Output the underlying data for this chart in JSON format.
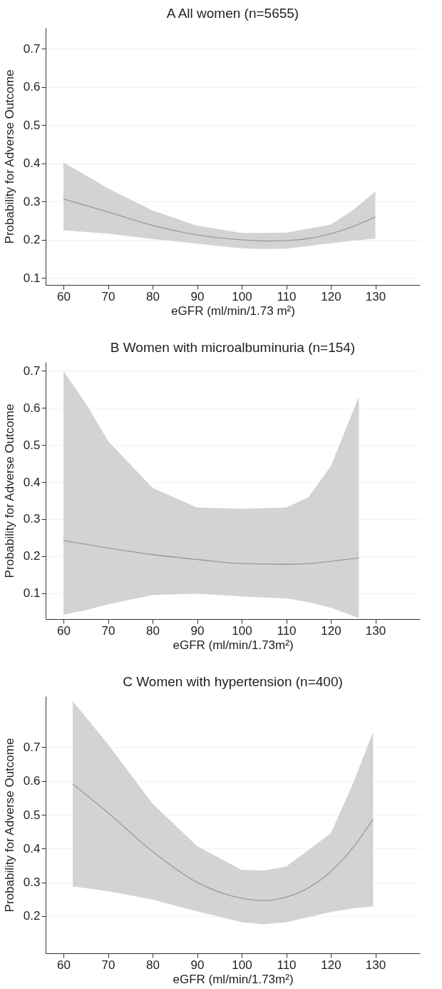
{
  "chart_data": [
    {
      "type": "line",
      "title": "A All women (n=5655)",
      "xlabel": "eGFR (ml/min/1.73 m²)",
      "ylabel": "Probability for Adverse Outcome",
      "x": [
        60,
        70,
        80,
        90,
        100,
        105,
        110,
        120,
        125,
        130
      ],
      "series": [
        {
          "color": "#9a9a9a",
          "values": [
            0.307,
            0.273,
            0.238,
            0.213,
            0.2,
            0.197,
            0.198,
            0.216,
            0.235,
            0.26
          ],
          "lower": [
            0.225,
            0.216,
            0.202,
            0.19,
            0.178,
            0.176,
            0.177,
            0.191,
            0.198,
            0.203
          ],
          "upper": [
            0.403,
            0.335,
            0.277,
            0.237,
            0.218,
            0.218,
            0.219,
            0.24,
            0.278,
            0.327
          ]
        }
      ],
      "xlim": [
        56,
        140
      ],
      "xticks": [
        60,
        70,
        80,
        90,
        100,
        110,
        120,
        130
      ],
      "ylim": [
        0.082,
        0.755
      ],
      "yticks": [
        0.1,
        0.2,
        0.3,
        0.4,
        0.5,
        0.6,
        0.7
      ],
      "grid": "y"
    },
    {
      "type": "line",
      "title": "B Women with microalbuminuria (n=154)",
      "xlabel": "eGFR (ml/min/1.73m²)",
      "ylabel": "Probability for Adverse Outcome",
      "x": [
        60,
        65,
        70,
        80,
        90,
        100,
        110,
        115,
        120,
        126.3
      ],
      "series": [
        {
          "color": "#9a9a9a",
          "values": [
            0.242,
            0.232,
            0.222,
            0.204,
            0.191,
            0.18,
            0.178,
            0.18,
            0.186,
            0.195
          ],
          "lower": [
            0.042,
            0.054,
            0.07,
            0.095,
            0.099,
            0.091,
            0.086,
            0.076,
            0.061,
            0.033
          ],
          "upper": [
            0.7,
            0.612,
            0.511,
            0.384,
            0.331,
            0.328,
            0.331,
            0.359,
            0.443,
            0.63
          ]
        }
      ],
      "xlim": [
        56,
        140
      ],
      "xticks": [
        60,
        70,
        80,
        90,
        100,
        110,
        120,
        130
      ],
      "ylim": [
        0.03,
        0.724
      ],
      "yticks": [
        0.1,
        0.2,
        0.3,
        0.4,
        0.5,
        0.6,
        0.7
      ],
      "grid": "y"
    },
    {
      "type": "line",
      "title": "C Women with hypertension (n=400)",
      "xlabel": "eGFR (ml/min/1.73m²)",
      "ylabel": "Probability for Adverse Outcome",
      "x": [
        62.1,
        70,
        80,
        90,
        100,
        105,
        110,
        120,
        125,
        129.5
      ],
      "series": [
        {
          "color": "#9a9a9a",
          "values": [
            0.591,
            0.506,
            0.391,
            0.3,
            0.253,
            0.246,
            0.256,
            0.332,
            0.403,
            0.487
          ],
          "lower": [
            0.288,
            0.274,
            0.249,
            0.214,
            0.182,
            0.176,
            0.182,
            0.212,
            0.223,
            0.229
          ],
          "upper": [
            0.836,
            0.709,
            0.533,
            0.407,
            0.337,
            0.335,
            0.347,
            0.445,
            0.593,
            0.746
          ]
        }
      ],
      "xlim": [
        56,
        140
      ],
      "xticks": [
        60,
        70,
        80,
        90,
        100,
        110,
        120,
        130
      ],
      "ylim": [
        0.09,
        0.851
      ],
      "yticks": [
        0.2,
        0.3,
        0.4,
        0.5,
        0.6,
        0.7
      ],
      "grid": "y"
    }
  ]
}
